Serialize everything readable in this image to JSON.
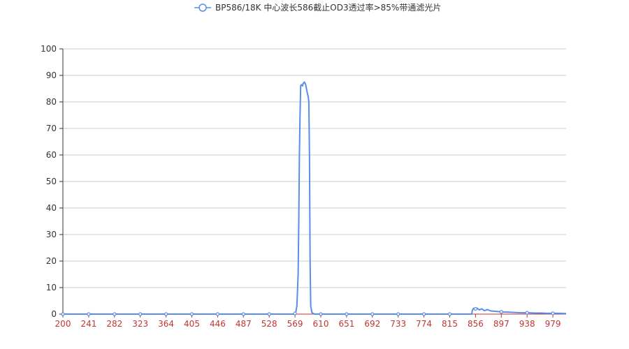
{
  "chart_data": {
    "type": "line",
    "title": "",
    "xlabel": "",
    "ylabel": "",
    "legend": {
      "position": "top-center"
    },
    "xlim": [
      200,
      1000
    ],
    "ylim": [
      0,
      100
    ],
    "grid": true,
    "x_ticks": [
      "200",
      "241",
      "282",
      "323",
      "364",
      "405",
      "446",
      "487",
      "528",
      "569",
      "610",
      "651",
      "692",
      "733",
      "774",
      "815",
      "856",
      "897",
      "938",
      "979"
    ],
    "y_ticks": [
      "0",
      "10",
      "20",
      "30",
      "40",
      "50",
      "60",
      "70",
      "80",
      "90",
      "100"
    ],
    "colors": {
      "series": "#5a8de8",
      "x_axis_labels": "#c23531",
      "grid": "#cccccc"
    },
    "series": [
      {
        "name": "BP586/18K 中心波长586截止OD3透过率>85%带通滤光片",
        "markers_x": [
          200,
          241,
          282,
          323,
          364,
          405,
          446,
          487,
          528,
          569,
          610,
          651,
          692,
          733,
          774,
          815,
          856,
          897,
          938,
          979
        ],
        "x": [
          200,
          560,
          568,
          570,
          572,
          574,
          575,
          576,
          577,
          578,
          579,
          581,
          582,
          584,
          586,
          588,
          590,
          591,
          592,
          593,
          594,
          596,
          600,
          650,
          700,
          750,
          800,
          850,
          851,
          853,
          855,
          858,
          862,
          866,
          870,
          875,
          880,
          890,
          900,
          910,
          920,
          930,
          940,
          950,
          960,
          970,
          980,
          990,
          1000
        ],
        "y": [
          0,
          0,
          0,
          0.5,
          3,
          15,
          35,
          60,
          75,
          86,
          86.5,
          86,
          87,
          87.5,
          86.5,
          84,
          82,
          80,
          60,
          20,
          3,
          0.5,
          0,
          0,
          0,
          0,
          0,
          0,
          1.5,
          2.2,
          1.8,
          2.3,
          1.6,
          2.0,
          1.3,
          1.7,
          1.2,
          1.0,
          0.8,
          0.7,
          0.6,
          0.5,
          0.5,
          0.4,
          0.4,
          0.3,
          0.3,
          0.3,
          0.2
        ]
      }
    ]
  }
}
